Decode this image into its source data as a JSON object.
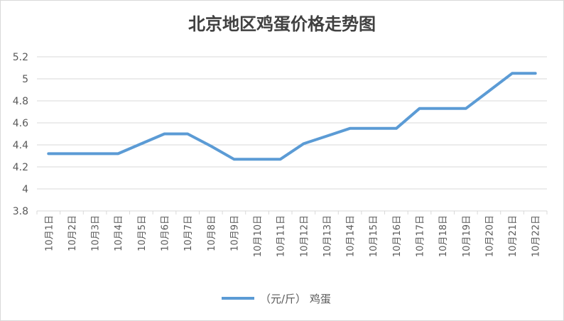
{
  "chart_data": {
    "type": "line",
    "title": "北京地区鸡蛋价格走势图",
    "xlabel": "",
    "ylabel": "",
    "categories": [
      "10月1日",
      "10月2日",
      "10月3日",
      "10月4日",
      "10月5日",
      "10月6日",
      "10月7日",
      "10月8日",
      "10月9日",
      "10月10日",
      "10月11日",
      "10月12日",
      "10月13日",
      "10月14日",
      "10月15日",
      "10月16日",
      "10月17日",
      "10月18日",
      "10月19日",
      "10月20日",
      "10月21日",
      "10月22日"
    ],
    "series": [
      {
        "name": "（元/斤） 鸡蛋",
        "color": "#5b9bd5",
        "values": [
          4.32,
          4.32,
          4.32,
          4.32,
          4.41,
          4.5,
          4.5,
          4.39,
          4.27,
          4.27,
          4.27,
          4.41,
          4.48,
          4.55,
          4.55,
          4.55,
          4.73,
          4.73,
          4.73,
          4.89,
          5.05,
          5.05
        ]
      }
    ],
    "ylim": [
      3.8,
      5.2
    ],
    "yticks": [
      "3.8",
      "4",
      "4.2",
      "4.4",
      "4.6",
      "4.8",
      "5",
      "5.2"
    ],
    "grid": true,
    "legend_position": "bottom"
  }
}
